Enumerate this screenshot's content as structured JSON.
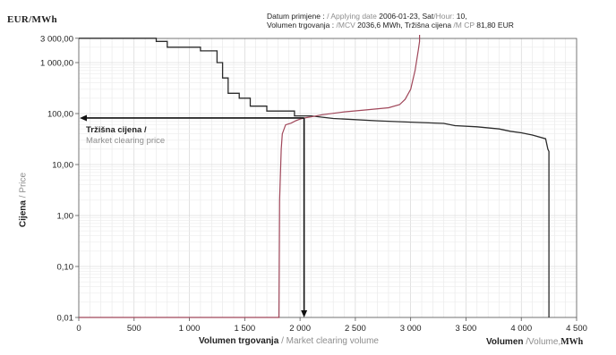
{
  "header": {
    "unit": "EUR/MWh",
    "date_label_hr": "Datum primjene :",
    "date_label_en": "/ Applying date",
    "date_value": "2006-01-23,",
    "hour_label_hr": "Sat",
    "hour_label_en": "/Hour:",
    "hour_value": "10,",
    "volume_label_hr": "Volumen trgovanja :",
    "volume_label_en": "/MCV",
    "volume_value": "2036,6 MWh,",
    "price_label_hr": "Tržišna cijena",
    "price_label_en": "/M CP",
    "price_value": "81,80 EUR"
  },
  "annotation": {
    "line1": "Tržišna cijena /",
    "line2": "Market clearing price"
  },
  "axes": {
    "y_title_hr": "Cijena",
    "y_title_en": "/ Price",
    "x_title_hr": "Volumen trgovanja",
    "x_title_en": "/ Market clearing volume",
    "x_right_hr": "Volumen",
    "x_right_en": "/Volume,",
    "x_right_unit": "MWh"
  },
  "chart_data": {
    "type": "line",
    "x_scale": "linear",
    "y_scale": "log",
    "xlim": [
      0,
      4500
    ],
    "ylim": [
      0.01,
      3000
    ],
    "x_ticks": [
      0,
      500,
      1000,
      1500,
      2000,
      2500,
      3000,
      3500,
      4000,
      4500
    ],
    "x_tick_labels": [
      "0",
      "500",
      "1 000",
      "1 500",
      "2 000",
      "2 500",
      "3 000",
      "3 500",
      "4 000",
      "4 500"
    ],
    "y_ticks": [
      0.01,
      0.1,
      1,
      10,
      100,
      1000,
      3000
    ],
    "y_tick_labels": [
      "0,01",
      "0,10",
      "1,00",
      "10,00",
      "100,00",
      "1 000,00",
      "3 000,00"
    ],
    "grid": true,
    "market_clearing": {
      "volume": 2036.6,
      "price": 81.8
    },
    "series": [
      {
        "color": "#2b2b2b",
        "points": [
          [
            0,
            3000
          ],
          [
            700,
            3000
          ],
          [
            700,
            2600
          ],
          [
            800,
            2600
          ],
          [
            800,
            2000
          ],
          [
            1100,
            2000
          ],
          [
            1100,
            1700
          ],
          [
            1250,
            1700
          ],
          [
            1250,
            1000
          ],
          [
            1300,
            1000
          ],
          [
            1300,
            500
          ],
          [
            1350,
            500
          ],
          [
            1350,
            250
          ],
          [
            1450,
            250
          ],
          [
            1450,
            200
          ],
          [
            1550,
            200
          ],
          [
            1550,
            140
          ],
          [
            1700,
            140
          ],
          [
            1700,
            112
          ],
          [
            1950,
            112
          ],
          [
            1950,
            90
          ],
          [
            2100,
            90
          ],
          [
            2300,
            80
          ],
          [
            2700,
            72
          ],
          [
            3050,
            67
          ],
          [
            3300,
            64
          ],
          [
            3400,
            58
          ],
          [
            3600,
            55
          ],
          [
            3800,
            50
          ],
          [
            3900,
            45
          ],
          [
            4000,
            42
          ],
          [
            4100,
            38
          ],
          [
            4220,
            32
          ],
          [
            4240,
            20
          ],
          [
            4250,
            18
          ],
          [
            4250,
            0.01
          ],
          [
            4250,
            0.001
          ]
        ]
      },
      {
        "color": "#a0475a",
        "points": [
          [
            0,
            0.01
          ],
          [
            1810,
            0.01
          ],
          [
            1815,
            2
          ],
          [
            1820,
            4.5
          ],
          [
            1830,
            20
          ],
          [
            1840,
            40
          ],
          [
            1870,
            60
          ],
          [
            1920,
            65
          ],
          [
            1960,
            72
          ],
          [
            2000,
            78
          ],
          [
            2040,
            82
          ],
          [
            2100,
            86
          ],
          [
            2200,
            95
          ],
          [
            2400,
            108
          ],
          [
            2600,
            118
          ],
          [
            2800,
            130
          ],
          [
            2900,
            150
          ],
          [
            2950,
            190
          ],
          [
            3000,
            300
          ],
          [
            3040,
            700
          ],
          [
            3070,
            1800
          ],
          [
            3080,
            2600
          ],
          [
            3080,
            3500
          ]
        ]
      }
    ]
  }
}
